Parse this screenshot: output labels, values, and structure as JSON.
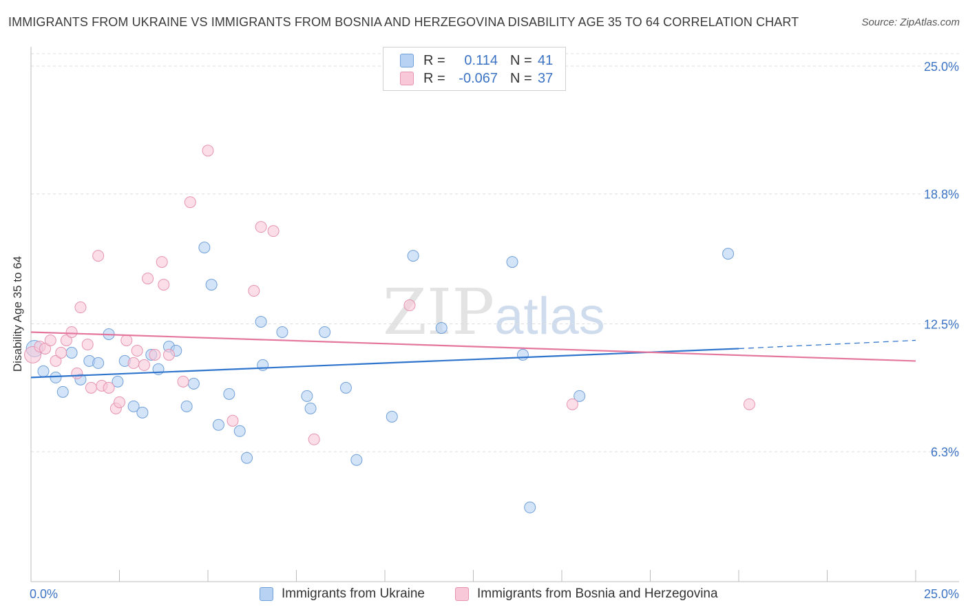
{
  "header": {
    "title": "IMMIGRANTS FROM UKRAINE VS IMMIGRANTS FROM BOSNIA AND HERZEGOVINA DISABILITY AGE 35 TO 64 CORRELATION CHART",
    "source": "Source: ZipAtlas.com"
  },
  "watermark": {
    "zip": "ZIP",
    "atlas": "atlas"
  },
  "legend_top": {
    "rows": [
      {
        "r_label": "R =",
        "r_value": "0.114",
        "n_label": "N =",
        "n_value": "41"
      },
      {
        "r_label": "R =",
        "r_value": "-0.067",
        "n_label": "N =",
        "n_value": "37"
      }
    ]
  },
  "legend_bottom": {
    "items": [
      {
        "label": "Immigrants from Ukraine"
      },
      {
        "label": "Immigrants from Bosnia and Herzegovina"
      }
    ]
  },
  "chart_data": {
    "type": "scatter",
    "title": "IMMIGRANTS FROM UKRAINE VS IMMIGRANTS FROM BOSNIA AND HERZEGOVINA DISABILITY AGE 35 TO 64 CORRELATION CHART",
    "xlabel": "",
    "ylabel": "Disability Age 35 to 64",
    "xlim": [
      0,
      25
    ],
    "ylim": [
      0,
      25.6
    ],
    "x_tick_labels": [
      "0.0%",
      "25.0%"
    ],
    "y_ticks": [
      6.3,
      12.5,
      18.8,
      25.0
    ],
    "y_tick_labels": [
      "6.3%",
      "12.5%",
      "18.8%",
      "25.0%"
    ],
    "grid": true,
    "colors": {
      "ukraine_fill": "#b8d2f3",
      "ukraine_stroke": "#6f9fd8",
      "ukraine_line": "#2f74cc",
      "bosnia_fill": "#f8c8d8",
      "bosnia_stroke": "#e693b0",
      "bosnia_line": "#e4759d",
      "tick_label": "#3b73c4",
      "grid": "#dddddd"
    },
    "series": [
      {
        "name": "Immigrants from Ukraine",
        "r": 0.114,
        "n": 41,
        "trend": {
          "x0": 0,
          "y0": 9.9,
          "x1": 20.0,
          "y1": 11.3,
          "dash_to_x": 25.0,
          "dash_to_y": 11.7
        },
        "points": [
          {
            "x": 0.1,
            "y": 11.3,
            "large": true
          },
          {
            "x": 0.35,
            "y": 10.2
          },
          {
            "x": 0.7,
            "y": 9.9
          },
          {
            "x": 0.9,
            "y": 9.2
          },
          {
            "x": 1.15,
            "y": 11.1
          },
          {
            "x": 1.4,
            "y": 9.8
          },
          {
            "x": 1.65,
            "y": 10.7
          },
          {
            "x": 1.9,
            "y": 10.6
          },
          {
            "x": 2.2,
            "y": 12.0
          },
          {
            "x": 2.45,
            "y": 9.7
          },
          {
            "x": 2.65,
            "y": 10.7
          },
          {
            "x": 2.9,
            "y": 8.5
          },
          {
            "x": 3.15,
            "y": 8.2
          },
          {
            "x": 3.4,
            "y": 11.0
          },
          {
            "x": 3.6,
            "y": 10.3
          },
          {
            "x": 3.9,
            "y": 11.4
          },
          {
            "x": 4.1,
            "y": 11.2
          },
          {
            "x": 4.4,
            "y": 8.5
          },
          {
            "x": 4.6,
            "y": 9.6
          },
          {
            "x": 4.9,
            "y": 16.2
          },
          {
            "x": 5.1,
            "y": 14.4
          },
          {
            "x": 5.3,
            "y": 7.6
          },
          {
            "x": 5.6,
            "y": 9.1
          },
          {
            "x": 5.9,
            "y": 7.3
          },
          {
            "x": 6.1,
            "y": 6.0
          },
          {
            "x": 6.5,
            "y": 12.6
          },
          {
            "x": 6.55,
            "y": 10.5
          },
          {
            "x": 7.1,
            "y": 12.1
          },
          {
            "x": 7.8,
            "y": 9.0
          },
          {
            "x": 7.9,
            "y": 8.4
          },
          {
            "x": 8.3,
            "y": 12.1
          },
          {
            "x": 8.9,
            "y": 9.4
          },
          {
            "x": 9.2,
            "y": 5.9
          },
          {
            "x": 10.2,
            "y": 8.0
          },
          {
            "x": 10.8,
            "y": 15.8
          },
          {
            "x": 11.6,
            "y": 12.3
          },
          {
            "x": 13.6,
            "y": 15.5
          },
          {
            "x": 13.9,
            "y": 11.0
          },
          {
            "x": 14.1,
            "y": 3.6
          },
          {
            "x": 15.5,
            "y": 9.0
          },
          {
            "x": 19.7,
            "y": 15.9
          }
        ]
      },
      {
        "name": "Immigrants from Bosnia and Herzegovina",
        "r": -0.067,
        "n": 37,
        "trend": {
          "x0": 0,
          "y0": 12.1,
          "x1": 25.0,
          "y1": 10.7
        },
        "points": [
          {
            "x": 0.05,
            "y": 11.0,
            "large": true
          },
          {
            "x": 0.25,
            "y": 11.4
          },
          {
            "x": 0.4,
            "y": 11.3
          },
          {
            "x": 0.55,
            "y": 11.7
          },
          {
            "x": 0.7,
            "y": 10.7
          },
          {
            "x": 0.85,
            "y": 11.1
          },
          {
            "x": 1.0,
            "y": 11.7
          },
          {
            "x": 1.15,
            "y": 12.1
          },
          {
            "x": 1.3,
            "y": 10.1
          },
          {
            "x": 1.4,
            "y": 13.3
          },
          {
            "x": 1.6,
            "y": 11.5
          },
          {
            "x": 1.7,
            "y": 9.4
          },
          {
            "x": 1.9,
            "y": 15.8
          },
          {
            "x": 2.0,
            "y": 9.5
          },
          {
            "x": 2.2,
            "y": 9.4
          },
          {
            "x": 2.4,
            "y": 8.4
          },
          {
            "x": 2.5,
            "y": 8.7
          },
          {
            "x": 2.7,
            "y": 11.7
          },
          {
            "x": 2.9,
            "y": 10.6
          },
          {
            "x": 3.0,
            "y": 11.2
          },
          {
            "x": 3.2,
            "y": 10.5
          },
          {
            "x": 3.3,
            "y": 14.7
          },
          {
            "x": 3.5,
            "y": 11.0
          },
          {
            "x": 3.7,
            "y": 15.5
          },
          {
            "x": 3.75,
            "y": 14.4
          },
          {
            "x": 3.9,
            "y": 11.0
          },
          {
            "x": 4.3,
            "y": 9.7
          },
          {
            "x": 4.5,
            "y": 18.4
          },
          {
            "x": 5.0,
            "y": 20.9
          },
          {
            "x": 5.7,
            "y": 7.8
          },
          {
            "x": 6.3,
            "y": 14.1
          },
          {
            "x": 6.5,
            "y": 17.2
          },
          {
            "x": 6.85,
            "y": 17.0
          },
          {
            "x": 8.0,
            "y": 6.9
          },
          {
            "x": 10.7,
            "y": 13.4
          },
          {
            "x": 15.3,
            "y": 8.6
          },
          {
            "x": 20.3,
            "y": 8.6
          }
        ]
      }
    ]
  }
}
